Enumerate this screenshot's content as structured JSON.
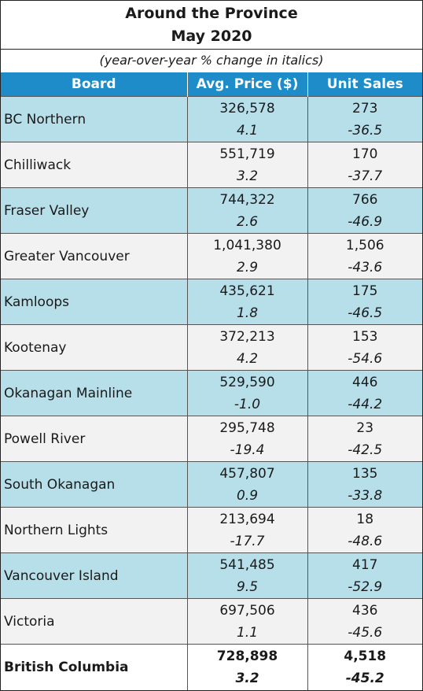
{
  "title_line1": "Around the Province",
  "title_line2": "May 2020",
  "subtitle": "(year-over-year % change in italics)",
  "headers": {
    "board": "Board",
    "price": "Avg. Price ($)",
    "sales": "Unit Sales"
  },
  "rows": [
    {
      "board": "BC Northern",
      "price": "326,578",
      "price_chg": "4.1",
      "sales": "273",
      "sales_chg": "-36.5"
    },
    {
      "board": "Chilliwack",
      "price": "551,719",
      "price_chg": "3.2",
      "sales": "170",
      "sales_chg": "-37.7"
    },
    {
      "board": "Fraser Valley",
      "price": "744,322",
      "price_chg": "2.6",
      "sales": "766",
      "sales_chg": "-46.9"
    },
    {
      "board": "Greater Vancouver",
      "price": "1,041,380",
      "price_chg": "2.9",
      "sales": "1,506",
      "sales_chg": "-43.6"
    },
    {
      "board": "Kamloops",
      "price": "435,621",
      "price_chg": "1.8",
      "sales": "175",
      "sales_chg": "-46.5"
    },
    {
      "board": "Kootenay",
      "price": "372,213",
      "price_chg": "4.2",
      "sales": "153",
      "sales_chg": "-54.6"
    },
    {
      "board": "Okanagan Mainline",
      "price": "529,590",
      "price_chg": "-1.0",
      "sales": "446",
      "sales_chg": "-44.2"
    },
    {
      "board": "Powell River",
      "price": "295,748",
      "price_chg": "-19.4",
      "sales": "23",
      "sales_chg": "-42.5"
    },
    {
      "board": "South Okanagan",
      "price": "457,807",
      "price_chg": "0.9",
      "sales": "135",
      "sales_chg": "-33.8"
    },
    {
      "board": "Northern Lights",
      "price": "213,694",
      "price_chg": "-17.7",
      "sales": "18",
      "sales_chg": "-48.6"
    },
    {
      "board": "Vancouver Island",
      "price": "541,485",
      "price_chg": "9.5",
      "sales": "417",
      "sales_chg": "-52.9"
    },
    {
      "board": "Victoria",
      "price": "697,506",
      "price_chg": "1.1",
      "sales": "436",
      "sales_chg": "-45.6"
    }
  ],
  "total": {
    "board": "British Columbia",
    "price": "728,898",
    "price_chg": "3.2",
    "sales": "4,518",
    "sales_chg": "-45.2"
  },
  "colors": {
    "header": "#1e8cc8",
    "row_blue": "#b7dfea",
    "row_grey": "#f2f2f2"
  }
}
